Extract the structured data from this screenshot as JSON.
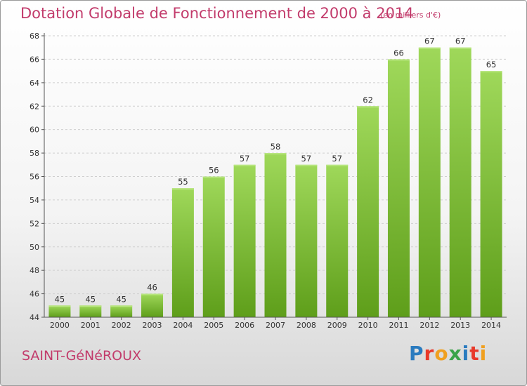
{
  "chart_data": {
    "type": "bar",
    "title": "Dotation Globale de Fonctionnement de 2000 à 2014",
    "subtitle": "(en milliers d'€)",
    "categories": [
      "2000",
      "2001",
      "2002",
      "2003",
      "2004",
      "2005",
      "2006",
      "2007",
      "2008",
      "2009",
      "2010",
      "2011",
      "2012",
      "2013",
      "2014"
    ],
    "values": [
      45,
      45,
      45,
      46,
      55,
      56,
      57,
      58,
      57,
      57,
      62,
      66,
      67,
      67,
      65
    ],
    "ylim": [
      44,
      68
    ],
    "yticks": [
      44,
      46,
      48,
      50,
      52,
      54,
      56,
      58,
      60,
      62,
      64,
      66,
      68
    ],
    "grid": true,
    "bar_color": "#7dc234",
    "title_color": "#c23b6b"
  },
  "footer": {
    "commune": "SAINT-GéNéROUX",
    "logo": "Proxiti"
  },
  "logo_colors": [
    "#2a7bbf",
    "#e8392a",
    "#f0a020",
    "#3aa34a",
    "#2a7bbf",
    "#e8392a",
    "#f0a020"
  ]
}
